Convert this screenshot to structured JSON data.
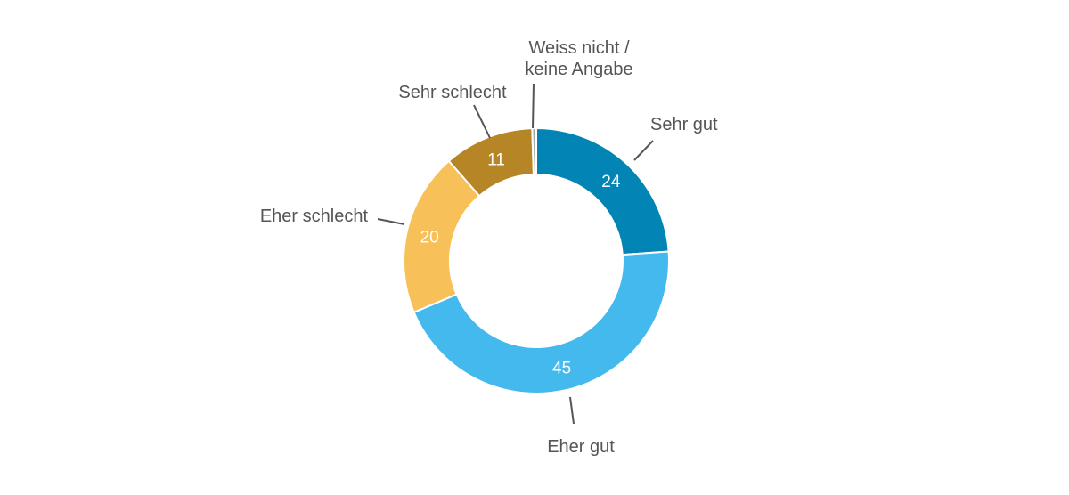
{
  "chart_data": {
    "type": "pie",
    "style": "donut",
    "slices": [
      {
        "label": "Sehr gut",
        "value": 24,
        "value_label": "24",
        "color": "#0284b5"
      },
      {
        "label": "Eher gut",
        "value": 45,
        "value_label": "45",
        "color": "#43b9ee"
      },
      {
        "label": "Eher schlecht",
        "value": 20,
        "value_label": "20",
        "color": "#f8c058"
      },
      {
        "label": "Sehr schlecht",
        "value": 11,
        "value_label": "11",
        "color": "#b58526"
      },
      {
        "label": "Weiss nicht / keine Angabe",
        "label_lines": [
          "Weiss nicht /",
          "keine Angabe"
        ],
        "value": 0.5,
        "value_label": "",
        "color": "#a8a8a8"
      }
    ],
    "start_angle_deg": 0,
    "direction": "clockwise"
  }
}
